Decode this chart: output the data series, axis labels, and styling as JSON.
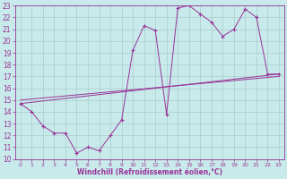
{
  "xlabel": "Windchill (Refroidissement éolien,°C)",
  "xlim": [
    -0.5,
    23.5
  ],
  "ylim": [
    10,
    23
  ],
  "xticks": [
    0,
    1,
    2,
    3,
    4,
    5,
    6,
    7,
    8,
    9,
    10,
    11,
    12,
    13,
    14,
    15,
    16,
    17,
    18,
    19,
    20,
    21,
    22,
    23
  ],
  "yticks": [
    10,
    11,
    12,
    13,
    14,
    15,
    16,
    17,
    18,
    19,
    20,
    21,
    22,
    23
  ],
  "bg_color": "#c8eaea",
  "line_color": "#993399",
  "grid_color": "#aacccc",
  "line1_x": [
    0,
    1,
    2,
    3,
    4,
    5,
    6,
    7,
    8,
    9,
    10,
    11,
    12,
    13,
    14,
    15,
    16,
    17,
    18,
    19,
    20,
    21,
    22,
    23
  ],
  "line1_y": [
    14.7,
    14.0,
    12.8,
    12.2,
    12.2,
    10.5,
    11.0,
    10.7,
    12.0,
    13.3,
    19.2,
    21.3,
    20.9,
    13.8,
    22.8,
    23.0,
    22.3,
    21.6,
    20.4,
    21.0,
    22.7,
    22.0,
    17.2,
    17.2
  ],
  "line2_x": [
    0,
    23
  ],
  "line2_y": [
    14.7,
    17.2
  ],
  "line3_x": [
    0,
    23
  ],
  "line3_y": [
    15.0,
    17.0
  ]
}
